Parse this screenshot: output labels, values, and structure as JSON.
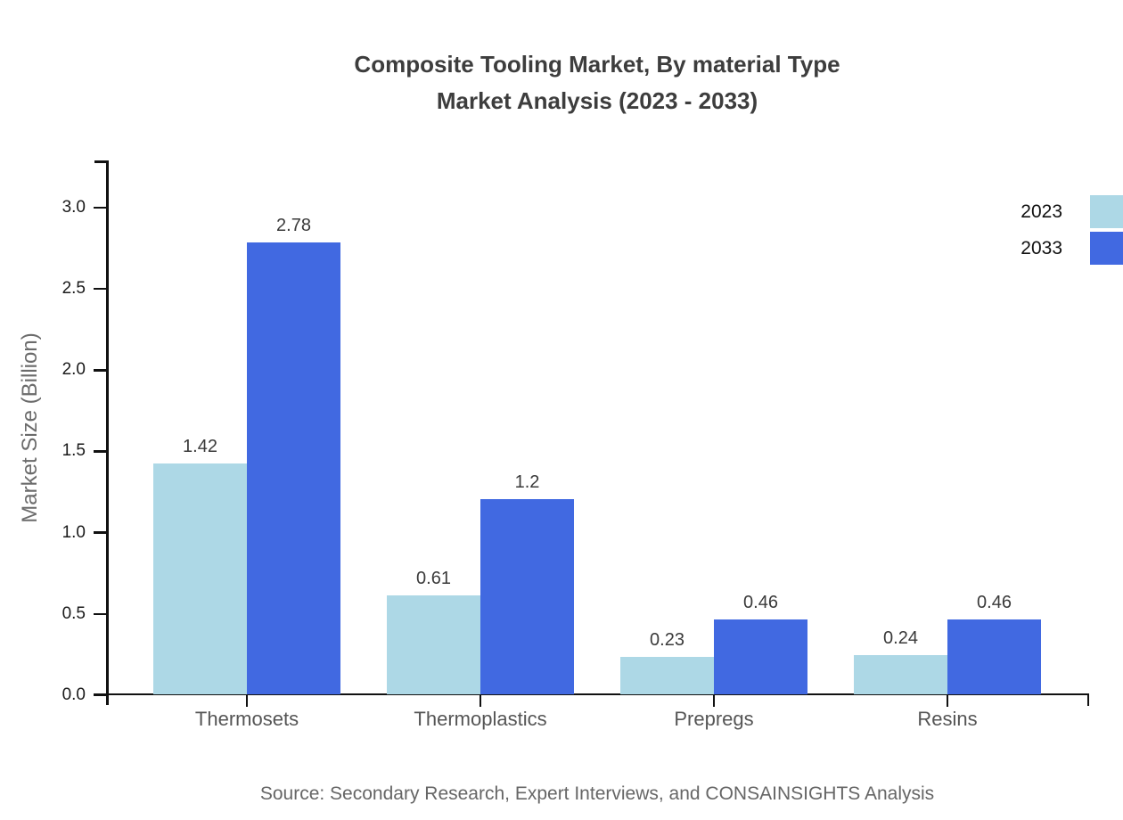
{
  "title": {
    "line1": "Composite Tooling Market, By material Type",
    "line2": "Market Analysis (2023 - 2033)"
  },
  "source": "Source: Secondary Research, Expert Interviews, and CONSAINSIGHTS Analysis",
  "colors": {
    "series_2023": "#ADD8E6",
    "series_2033": "#4169E1"
  },
  "chart_data": {
    "type": "bar",
    "title": "Composite Tooling Market, By material Type Market Analysis (2023 - 2033)",
    "categories": [
      "Thermosets",
      "Thermoplastics",
      "Prepregs",
      "Resins"
    ],
    "series": [
      {
        "name": "2023",
        "color_key": "series_2023",
        "values": [
          1.42,
          0.61,
          0.23,
          0.24
        ]
      },
      {
        "name": "2033",
        "color_key": "series_2033",
        "values": [
          2.78,
          1.2,
          0.46,
          0.46
        ]
      }
    ],
    "xlabel": "",
    "ylabel": "Market Size (Billion)",
    "yticks": [
      0.0,
      0.5,
      1.0,
      1.5,
      2.0,
      2.5,
      3.0
    ],
    "ylim": [
      0,
      3.29
    ],
    "grid": false,
    "value_labels": true,
    "legend_position": "top-right"
  }
}
